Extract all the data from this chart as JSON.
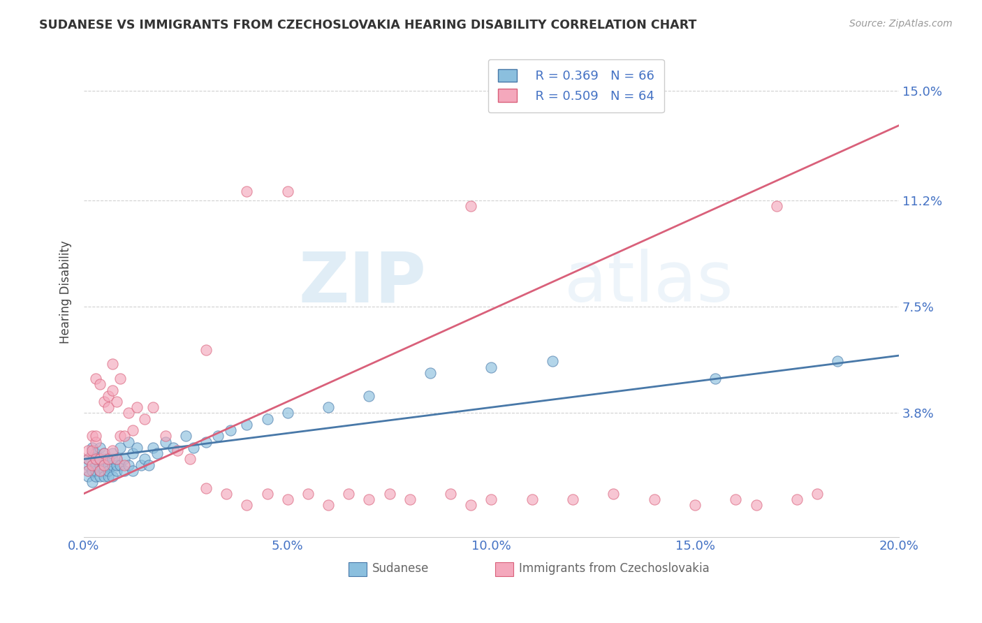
{
  "title": "SUDANESE VS IMMIGRANTS FROM CZECHOSLOVAKIA HEARING DISABILITY CORRELATION CHART",
  "source": "Source: ZipAtlas.com",
  "ylabel": "Hearing Disability",
  "xlim": [
    0.0,
    0.2
  ],
  "ylim": [
    -0.005,
    0.165
  ],
  "yticks": [
    0.038,
    0.075,
    0.112,
    0.15
  ],
  "ytick_labels": [
    "3.8%",
    "7.5%",
    "11.2%",
    "15.0%"
  ],
  "xticks": [
    0.0,
    0.05,
    0.1,
    0.15,
    0.2
  ],
  "xtick_labels": [
    "0.0%",
    "5.0%",
    "10.0%",
    "15.0%",
    "20.0%"
  ],
  "legend_r1": "R = 0.369",
  "legend_n1": "N = 66",
  "legend_r2": "R = 0.509",
  "legend_n2": "N = 64",
  "color_blue": "#8bbfde",
  "color_pink": "#f4a8bc",
  "line_color_blue": "#4878a8",
  "line_color_pink": "#d9607a",
  "watermark_zip": "ZIP",
  "watermark_atlas": "atlas",
  "background_color": "#ffffff",
  "blue_line_x0": 0.0,
  "blue_line_y0": 0.022,
  "blue_line_x1": 0.2,
  "blue_line_y1": 0.058,
  "pink_line_x0": 0.0,
  "pink_line_y0": 0.01,
  "pink_line_x1": 0.2,
  "pink_line_y1": 0.138,
  "sudanese_x": [
    0.001,
    0.001,
    0.001,
    0.001,
    0.002,
    0.002,
    0.002,
    0.002,
    0.002,
    0.003,
    0.003,
    0.003,
    0.003,
    0.003,
    0.004,
    0.004,
    0.004,
    0.004,
    0.004,
    0.005,
    0.005,
    0.005,
    0.005,
    0.005,
    0.006,
    0.006,
    0.006,
    0.006,
    0.007,
    0.007,
    0.007,
    0.007,
    0.008,
    0.008,
    0.008,
    0.009,
    0.009,
    0.01,
    0.01,
    0.011,
    0.011,
    0.012,
    0.012,
    0.013,
    0.014,
    0.015,
    0.016,
    0.017,
    0.018,
    0.02,
    0.022,
    0.025,
    0.027,
    0.03,
    0.033,
    0.036,
    0.04,
    0.045,
    0.05,
    0.06,
    0.07,
    0.085,
    0.1,
    0.115,
    0.155,
    0.185
  ],
  "sudanese_y": [
    0.018,
    0.02,
    0.022,
    0.016,
    0.018,
    0.02,
    0.024,
    0.014,
    0.026,
    0.016,
    0.018,
    0.02,
    0.022,
    0.024,
    0.016,
    0.02,
    0.022,
    0.018,
    0.026,
    0.018,
    0.02,
    0.022,
    0.016,
    0.024,
    0.016,
    0.02,
    0.022,
    0.018,
    0.016,
    0.02,
    0.022,
    0.024,
    0.018,
    0.02,
    0.022,
    0.02,
    0.026,
    0.018,
    0.022,
    0.02,
    0.028,
    0.018,
    0.024,
    0.026,
    0.02,
    0.022,
    0.02,
    0.026,
    0.024,
    0.028,
    0.026,
    0.03,
    0.026,
    0.028,
    0.03,
    0.032,
    0.034,
    0.036,
    0.038,
    0.04,
    0.044,
    0.052,
    0.054,
    0.056,
    0.05,
    0.056
  ],
  "czech_x": [
    0.001,
    0.001,
    0.001,
    0.002,
    0.002,
    0.002,
    0.003,
    0.003,
    0.003,
    0.003,
    0.004,
    0.004,
    0.004,
    0.005,
    0.005,
    0.005,
    0.006,
    0.006,
    0.006,
    0.007,
    0.007,
    0.007,
    0.008,
    0.008,
    0.009,
    0.009,
    0.01,
    0.01,
    0.011,
    0.012,
    0.013,
    0.015,
    0.017,
    0.02,
    0.023,
    0.026,
    0.03,
    0.035,
    0.04,
    0.045,
    0.05,
    0.055,
    0.06,
    0.065,
    0.07,
    0.075,
    0.08,
    0.09,
    0.095,
    0.1,
    0.11,
    0.12,
    0.13,
    0.14,
    0.15,
    0.16,
    0.165,
    0.17,
    0.175,
    0.18,
    0.03,
    0.04,
    0.05,
    0.095
  ],
  "czech_y": [
    0.018,
    0.022,
    0.025,
    0.02,
    0.025,
    0.03,
    0.022,
    0.028,
    0.03,
    0.05,
    0.018,
    0.022,
    0.048,
    0.02,
    0.024,
    0.042,
    0.022,
    0.04,
    0.044,
    0.025,
    0.046,
    0.055,
    0.022,
    0.042,
    0.03,
    0.05,
    0.02,
    0.03,
    0.038,
    0.032,
    0.04,
    0.036,
    0.04,
    0.03,
    0.025,
    0.022,
    0.012,
    0.01,
    0.006,
    0.01,
    0.008,
    0.01,
    0.006,
    0.01,
    0.008,
    0.01,
    0.008,
    0.01,
    0.006,
    0.008,
    0.008,
    0.008,
    0.01,
    0.008,
    0.006,
    0.008,
    0.006,
    0.11,
    0.008,
    0.01,
    0.06,
    0.115,
    0.115,
    0.11
  ]
}
